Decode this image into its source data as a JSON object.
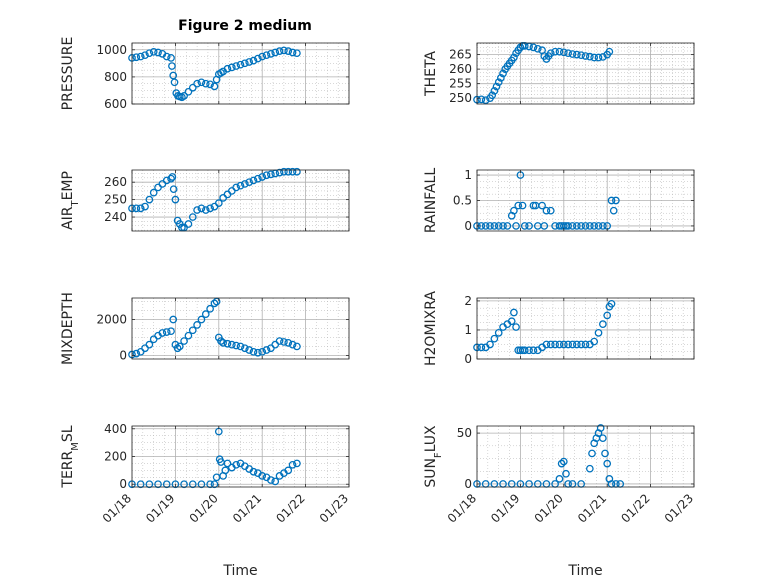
{
  "figure_title": "Figure 2 medium",
  "colors": {
    "marker": "#0072BD",
    "grid": "#b0b0b0",
    "axis": "#262626"
  },
  "chart_data": [
    {
      "type": "scatter",
      "ylabel": "PRESSURE",
      "ylabel_sub": null,
      "xlabel": "",
      "ylim": [
        600,
        1050
      ],
      "yticks": [
        600,
        800,
        1000
      ],
      "xlim": [
        0,
        5
      ],
      "grid": true,
      "xticklabels": [],
      "x": [
        0.0,
        0.1,
        0.2,
        0.3,
        0.4,
        0.5,
        0.6,
        0.7,
        0.8,
        0.9,
        0.92,
        0.95,
        0.98,
        1.02,
        1.06,
        1.1,
        1.15,
        1.2,
        1.3,
        1.4,
        1.5,
        1.6,
        1.7,
        1.8,
        1.9,
        1.95,
        2.0,
        2.05,
        2.1,
        2.2,
        2.3,
        2.4,
        2.5,
        2.6,
        2.7,
        2.8,
        2.9,
        3.0,
        3.1,
        3.2,
        3.3,
        3.4,
        3.5,
        3.6,
        3.7,
        3.8
      ],
      "y": [
        940,
        945,
        950,
        960,
        975,
        985,
        980,
        970,
        950,
        940,
        880,
        810,
        760,
        680,
        660,
        655,
        650,
        660,
        690,
        720,
        750,
        760,
        750,
        745,
        730,
        780,
        820,
        830,
        840,
        860,
        870,
        880,
        890,
        900,
        910,
        920,
        935,
        950,
        960,
        970,
        980,
        990,
        995,
        990,
        980,
        975
      ]
    },
    {
      "type": "scatter",
      "ylabel": "THETA",
      "ylabel_sub": null,
      "xlabel": "",
      "ylim": [
        248,
        269
      ],
      "yticks": [
        250,
        255,
        260,
        265
      ],
      "xlim": [
        0,
        5
      ],
      "grid": true,
      "xticklabels": [],
      "x": [
        0.0,
        0.1,
        0.2,
        0.3,
        0.35,
        0.4,
        0.45,
        0.5,
        0.55,
        0.6,
        0.65,
        0.7,
        0.75,
        0.8,
        0.85,
        0.9,
        0.95,
        1.0,
        1.05,
        1.1,
        1.2,
        1.3,
        1.4,
        1.5,
        1.55,
        1.6,
        1.65,
        1.7,
        1.8,
        1.9,
        2.0,
        2.1,
        2.2,
        2.3,
        2.4,
        2.5,
        2.6,
        2.7,
        2.8,
        2.9,
        3.0,
        3.05
      ],
      "y": [
        249.5,
        249.6,
        249.3,
        250,
        251,
        252.5,
        254,
        255.5,
        257,
        258.5,
        260,
        261,
        262,
        263,
        264,
        265.5,
        266.5,
        267.5,
        268,
        268,
        267.8,
        267.5,
        267,
        266.5,
        264.5,
        263.5,
        264.5,
        265.5,
        266,
        266,
        265.8,
        265.5,
        265.2,
        265,
        264.8,
        264.5,
        264.3,
        264,
        264,
        264.2,
        265,
        266
      ]
    },
    {
      "type": "scatter",
      "ylabel": "AIR",
      "ylabel_sub": "TEMP",
      "xlabel": "",
      "ylim": [
        232,
        267
      ],
      "yticks": [
        240,
        250,
        260
      ],
      "xlim": [
        0,
        5
      ],
      "grid": true,
      "xticklabels": [],
      "x": [
        0.0,
        0.1,
        0.2,
        0.3,
        0.4,
        0.5,
        0.6,
        0.7,
        0.8,
        0.9,
        0.93,
        0.96,
        1.0,
        1.05,
        1.1,
        1.15,
        1.2,
        1.3,
        1.4,
        1.5,
        1.6,
        1.7,
        1.8,
        1.9,
        2.0,
        2.1,
        2.2,
        2.3,
        2.4,
        2.5,
        2.6,
        2.7,
        2.8,
        2.9,
        3.0,
        3.1,
        3.2,
        3.3,
        3.4,
        3.5,
        3.6,
        3.7,
        3.8
      ],
      "y": [
        245,
        245,
        245,
        246,
        250,
        254,
        257,
        259,
        261,
        262,
        263,
        256,
        250,
        238,
        236,
        234,
        234,
        236,
        240,
        244,
        245,
        244,
        245,
        246,
        248,
        251,
        253,
        255,
        257,
        258,
        259,
        260,
        261,
        262,
        263,
        264,
        264.5,
        265,
        265.5,
        266,
        266,
        266,
        266
      ]
    },
    {
      "type": "scatter",
      "ylabel": "RAINFALL",
      "ylabel_sub": null,
      "xlabel": "",
      "ylim": [
        -0.1,
        1.1
      ],
      "yticks": [
        0,
        0.5,
        1
      ],
      "yticklabels": [
        "0",
        "0.5",
        "1"
      ],
      "xlim": [
        0,
        5
      ],
      "grid": true,
      "xticklabels": [],
      "x": [
        0.0,
        0.1,
        0.2,
        0.3,
        0.4,
        0.5,
        0.6,
        0.7,
        0.8,
        0.85,
        0.9,
        0.95,
        1.0,
        1.05,
        1.1,
        1.2,
        1.3,
        1.35,
        1.4,
        1.5,
        1.55,
        1.6,
        1.7,
        1.8,
        1.9,
        1.95,
        2.0,
        2.05,
        2.1,
        2.2,
        2.3,
        2.4,
        2.5,
        2.6,
        2.7,
        2.8,
        2.9,
        3.0,
        3.1,
        3.15,
        3.2
      ],
      "y": [
        0,
        0,
        0,
        0,
        0,
        0,
        0,
        0,
        0.2,
        0.3,
        0,
        0.4,
        1,
        0.4,
        0,
        0,
        0.4,
        0.4,
        0,
        0.4,
        0,
        0.3,
        0.3,
        0,
        0,
        0,
        0,
        0,
        0,
        0,
        0,
        0,
        0,
        0,
        0,
        0,
        0,
        0,
        0.5,
        0.3,
        0.5
      ]
    },
    {
      "type": "scatter",
      "ylabel": "MIXDEPTH",
      "ylabel_sub": null,
      "xlabel": "",
      "ylim": [
        -200,
        3200
      ],
      "yticks": [
        0,
        2000
      ],
      "xlim": [
        0,
        5
      ],
      "grid": true,
      "xticklabels": [],
      "x": [
        0.0,
        0.1,
        0.2,
        0.3,
        0.4,
        0.5,
        0.6,
        0.7,
        0.8,
        0.9,
        0.95,
        1.0,
        1.05,
        1.1,
        1.2,
        1.3,
        1.4,
        1.5,
        1.6,
        1.7,
        1.8,
        1.9,
        1.95,
        2.0,
        2.05,
        2.1,
        2.2,
        2.3,
        2.4,
        2.5,
        2.6,
        2.7,
        2.8,
        2.9,
        3.0,
        3.1,
        3.2,
        3.3,
        3.4,
        3.5,
        3.6,
        3.7,
        3.8
      ],
      "y": [
        50,
        100,
        200,
        400,
        600,
        900,
        1100,
        1250,
        1300,
        1350,
        2000,
        600,
        400,
        500,
        800,
        1100,
        1400,
        1700,
        2000,
        2300,
        2600,
        2900,
        3000,
        1000,
        800,
        700,
        650,
        600,
        550,
        500,
        400,
        300,
        200,
        150,
        200,
        300,
        400,
        600,
        800,
        750,
        700,
        600,
        500
      ]
    },
    {
      "type": "scatter",
      "ylabel": "H2OMIXRA",
      "ylabel_sub": null,
      "xlabel": "",
      "ylim": [
        0,
        2.1
      ],
      "yticks": [
        0,
        1,
        2
      ],
      "xlim": [
        0,
        5
      ],
      "grid": true,
      "xticklabels": [],
      "x": [
        0.0,
        0.1,
        0.2,
        0.3,
        0.4,
        0.5,
        0.6,
        0.7,
        0.8,
        0.85,
        0.9,
        0.95,
        1.0,
        1.05,
        1.1,
        1.2,
        1.3,
        1.4,
        1.5,
        1.6,
        1.7,
        1.8,
        1.9,
        2.0,
        2.1,
        2.2,
        2.3,
        2.4,
        2.5,
        2.6,
        2.7,
        2.8,
        2.9,
        3.0,
        3.05,
        3.1
      ],
      "y": [
        0.4,
        0.4,
        0.4,
        0.5,
        0.7,
        0.9,
        1.1,
        1.2,
        1.3,
        1.6,
        1.1,
        0.3,
        0.3,
        0.3,
        0.3,
        0.3,
        0.3,
        0.3,
        0.4,
        0.5,
        0.5,
        0.5,
        0.5,
        0.5,
        0.5,
        0.5,
        0.5,
        0.5,
        0.5,
        0.5,
        0.6,
        0.9,
        1.2,
        1.5,
        1.8,
        1.9
      ]
    },
    {
      "type": "scatter",
      "ylabel": "TERR",
      "ylabel_sub": "MSL",
      "xlabel": "Time",
      "ylim": [
        -20,
        420
      ],
      "yticks": [
        0,
        200,
        400
      ],
      "xlim": [
        0,
        5
      ],
      "grid": true,
      "xticklabels": [
        "01/18",
        "01/19",
        "01/20",
        "01/21",
        "01/22",
        "01/23"
      ],
      "x": [
        0.0,
        0.2,
        0.4,
        0.6,
        0.8,
        1.0,
        1.2,
        1.4,
        1.6,
        1.8,
        1.9,
        1.95,
        2.0,
        2.02,
        2.05,
        2.1,
        2.15,
        2.2,
        2.3,
        2.4,
        2.5,
        2.6,
        2.7,
        2.8,
        2.9,
        3.0,
        3.1,
        3.2,
        3.3,
        3.4,
        3.5,
        3.6,
        3.7,
        3.8
      ],
      "y": [
        0,
        0,
        0,
        0,
        0,
        0,
        0,
        0,
        0,
        0,
        0,
        50,
        380,
        180,
        160,
        60,
        100,
        150,
        120,
        140,
        150,
        130,
        110,
        90,
        80,
        60,
        50,
        30,
        20,
        60,
        80,
        100,
        140,
        150
      ]
    },
    {
      "type": "scatter",
      "ylabel": "SUN",
      "ylabel_sub": "FLUX",
      "xlabel": "Time",
      "ylim": [
        -3,
        57
      ],
      "yticks": [
        0,
        50
      ],
      "xlim": [
        0,
        5
      ],
      "grid": true,
      "xticklabels": [
        "01/18",
        "01/19",
        "01/20",
        "01/21",
        "01/22",
        "01/23"
      ],
      "x": [
        0.0,
        0.2,
        0.4,
        0.6,
        0.8,
        1.0,
        1.2,
        1.4,
        1.6,
        1.8,
        1.9,
        1.95,
        2.0,
        2.05,
        2.1,
        2.2,
        2.4,
        2.6,
        2.65,
        2.7,
        2.75,
        2.8,
        2.85,
        2.9,
        2.95,
        3.0,
        3.05,
        3.1,
        3.2,
        3.3
      ],
      "y": [
        0,
        0,
        0,
        0,
        0,
        0,
        0,
        0,
        0,
        0,
        5,
        20,
        22,
        10,
        0,
        0,
        0,
        15,
        30,
        40,
        45,
        50,
        55,
        45,
        30,
        20,
        5,
        0,
        0,
        0
      ]
    }
  ]
}
